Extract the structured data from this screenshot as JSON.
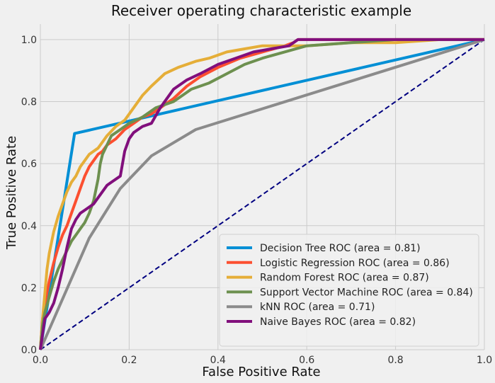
{
  "chart_data": {
    "type": "line",
    "title": "Receiver operating characteristic example",
    "xlabel": "False Positive Rate",
    "ylabel": "True Positive Rate",
    "xlim": [
      0.0,
      1.0
    ],
    "ylim": [
      0.0,
      1.05
    ],
    "xticks": [
      0.0,
      0.2,
      0.4,
      0.6,
      0.8,
      1.0
    ],
    "yticks": [
      0.0,
      0.2,
      0.4,
      0.6,
      0.8,
      1.0
    ],
    "xtick_labels": [
      "0.0",
      "0.2",
      "0.4",
      "0.6",
      "0.8",
      "1.0"
    ],
    "ytick_labels": [
      "0.0",
      "0.2",
      "0.4",
      "0.6",
      "0.8",
      "1.0"
    ],
    "grid": true,
    "legend_position": "lower-right",
    "diagonal": {
      "x": [
        0,
        1
      ],
      "y": [
        0,
        1
      ],
      "color": "#000080",
      "style": "dashed"
    },
    "series": [
      {
        "name": "Decision Tree ROC (area = 0.81)",
        "color": "#008fd5",
        "x": [
          0.0,
          0.077,
          1.0
        ],
        "y": [
          0.0,
          0.697,
          1.0
        ]
      },
      {
        "name": "Logistic Regression ROC (area = 0.86)",
        "color": "#fc4f30",
        "x": [
          0.0,
          0.005,
          0.01,
          0.02,
          0.03,
          0.04,
          0.05,
          0.06,
          0.07,
          0.08,
          0.09,
          0.1,
          0.11,
          0.12,
          0.13,
          0.14,
          0.15,
          0.17,
          0.19,
          0.21,
          0.23,
          0.25,
          0.27,
          0.3,
          0.33,
          0.36,
          0.4,
          0.45,
          0.5,
          0.55,
          0.57,
          0.58,
          0.6,
          0.7,
          0.8,
          0.9,
          1.0
        ],
        "y": [
          0.0,
          0.1,
          0.15,
          0.22,
          0.28,
          0.33,
          0.37,
          0.4,
          0.44,
          0.48,
          0.52,
          0.56,
          0.59,
          0.61,
          0.63,
          0.64,
          0.66,
          0.68,
          0.71,
          0.73,
          0.75,
          0.76,
          0.78,
          0.81,
          0.85,
          0.88,
          0.91,
          0.94,
          0.96,
          0.98,
          0.99,
          1.0,
          1.0,
          1.0,
          1.0,
          1.0,
          1.0
        ]
      },
      {
        "name": "Random Forest ROC (area = 0.87)",
        "color": "#e5ae38",
        "x": [
          0.0,
          0.005,
          0.01,
          0.015,
          0.02,
          0.03,
          0.04,
          0.05,
          0.06,
          0.07,
          0.08,
          0.09,
          0.1,
          0.11,
          0.12,
          0.13,
          0.14,
          0.15,
          0.17,
          0.19,
          0.21,
          0.23,
          0.25,
          0.28,
          0.31,
          0.35,
          0.38,
          0.42,
          0.46,
          0.5,
          0.55,
          0.6,
          0.7,
          0.8,
          0.9,
          1.0
        ],
        "y": [
          0.0,
          0.1,
          0.18,
          0.26,
          0.31,
          0.38,
          0.43,
          0.47,
          0.51,
          0.54,
          0.56,
          0.59,
          0.61,
          0.63,
          0.64,
          0.65,
          0.67,
          0.69,
          0.72,
          0.74,
          0.78,
          0.82,
          0.85,
          0.89,
          0.91,
          0.93,
          0.94,
          0.96,
          0.97,
          0.98,
          0.98,
          0.98,
          0.99,
          0.99,
          1.0,
          1.0
        ]
      },
      {
        "name": "Support Vector Machine ROC (area = 0.84)",
        "color": "#6d904f",
        "x": [
          0.0,
          0.005,
          0.01,
          0.02,
          0.03,
          0.04,
          0.05,
          0.06,
          0.07,
          0.08,
          0.09,
          0.1,
          0.11,
          0.12,
          0.13,
          0.135,
          0.14,
          0.15,
          0.16,
          0.18,
          0.2,
          0.23,
          0.26,
          0.3,
          0.34,
          0.38,
          0.42,
          0.46,
          0.5,
          0.55,
          0.6,
          0.7,
          0.8,
          0.9,
          1.0
        ],
        "y": [
          0.0,
          0.08,
          0.12,
          0.17,
          0.22,
          0.26,
          0.29,
          0.32,
          0.35,
          0.37,
          0.39,
          0.41,
          0.44,
          0.48,
          0.55,
          0.6,
          0.63,
          0.66,
          0.69,
          0.71,
          0.73,
          0.75,
          0.78,
          0.8,
          0.84,
          0.86,
          0.89,
          0.92,
          0.94,
          0.96,
          0.98,
          0.99,
          1.0,
          1.0,
          1.0
        ]
      },
      {
        "name": "kNN ROC (area = 0.71)",
        "color": "#8b8b8b",
        "x": [
          0.0,
          0.11,
          0.18,
          0.25,
          0.35,
          1.0
        ],
        "y": [
          0.0,
          0.36,
          0.52,
          0.625,
          0.71,
          1.0
        ]
      },
      {
        "name": "Naive Bayes ROC (area = 0.82)",
        "color": "#810f7c",
        "x": [
          0.0,
          0.005,
          0.01,
          0.02,
          0.03,
          0.04,
          0.05,
          0.06,
          0.07,
          0.08,
          0.09,
          0.1,
          0.12,
          0.14,
          0.15,
          0.16,
          0.18,
          0.19,
          0.2,
          0.21,
          0.22,
          0.23,
          0.25,
          0.27,
          0.3,
          0.33,
          0.36,
          0.4,
          0.44,
          0.48,
          0.52,
          0.56,
          0.58,
          0.6,
          0.7,
          0.8,
          0.9,
          1.0
        ],
        "y": [
          0.0,
          0.05,
          0.1,
          0.12,
          0.15,
          0.2,
          0.26,
          0.33,
          0.39,
          0.42,
          0.44,
          0.45,
          0.47,
          0.51,
          0.53,
          0.54,
          0.56,
          0.64,
          0.68,
          0.7,
          0.71,
          0.72,
          0.73,
          0.78,
          0.84,
          0.87,
          0.89,
          0.92,
          0.94,
          0.96,
          0.97,
          0.98,
          1.0,
          1.0,
          1.0,
          1.0,
          1.0,
          1.0
        ]
      }
    ]
  }
}
